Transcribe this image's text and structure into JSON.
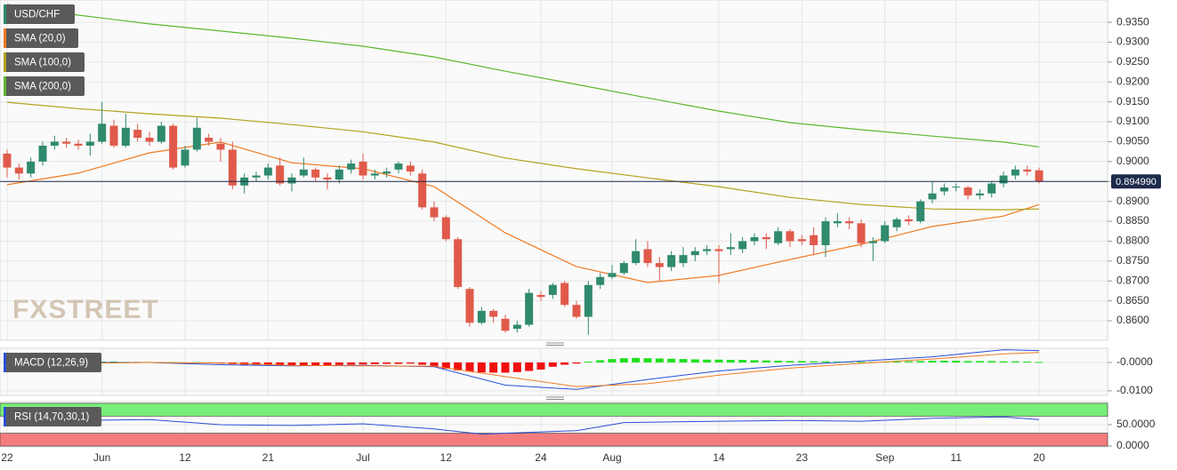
{
  "chart_data": {
    "type": "candlestick",
    "title": "USD/CHF",
    "watermark": "FXSTREET",
    "categories": [
      "22",
      null,
      null,
      null,
      null,
      null,
      null,
      null,
      "Jun",
      null,
      null,
      null,
      null,
      null,
      null,
      "12",
      null,
      null,
      null,
      null,
      null,
      null,
      "21",
      null,
      null,
      null,
      null,
      null,
      null,
      null,
      "Jul",
      null,
      null,
      null,
      null,
      null,
      null,
      "12",
      null,
      null,
      null,
      null,
      null,
      null,
      null,
      "24",
      null,
      null,
      null,
      null,
      null,
      "Aug",
      null,
      null,
      null,
      null,
      null,
      null,
      null,
      null,
      "14",
      null,
      null,
      null,
      null,
      null,
      null,
      "23",
      null,
      null,
      null,
      null,
      null,
      null,
      "Sep",
      null,
      null,
      null,
      null,
      null,
      "11",
      null,
      null,
      null,
      null,
      null,
      null,
      "20"
    ],
    "candles": {
      "open": [
        0.902,
        0.8985,
        0.897,
        0.9,
        0.904,
        0.905,
        0.9045,
        0.904,
        0.905,
        0.909,
        0.904,
        0.908,
        0.906,
        0.905,
        0.909,
        0.899,
        0.903,
        0.906,
        0.9045,
        0.903,
        0.894,
        0.896,
        0.8965,
        0.899,
        0.8945,
        0.8965,
        0.898,
        0.896,
        0.8955,
        0.898,
        0.9,
        0.8965,
        0.897,
        0.898,
        0.899,
        0.897,
        0.8885,
        0.886,
        0.8805,
        0.868,
        0.8595,
        0.8625,
        0.8605,
        0.858,
        0.859,
        0.8665,
        0.8665,
        0.8695,
        0.864,
        0.861,
        0.869,
        0.871,
        0.872,
        0.8745,
        0.878,
        0.8745,
        0.8735,
        0.8745,
        0.8765,
        0.8775,
        0.878,
        0.878,
        0.878,
        0.88,
        0.881,
        0.8795,
        0.8825,
        0.8805,
        0.8815,
        0.879,
        0.8845,
        0.885,
        0.8845,
        0.8795,
        0.88,
        0.8835,
        0.8855,
        0.885,
        0.8905,
        0.8925,
        0.8935,
        0.8935,
        0.8915,
        0.892,
        0.8945,
        0.8965,
        0.898,
        0.8978
      ],
      "high": [
        0.903,
        0.8995,
        0.901,
        0.905,
        0.9065,
        0.906,
        0.9055,
        0.907,
        0.915,
        0.9105,
        0.912,
        0.9095,
        0.9075,
        0.91,
        0.9095,
        0.904,
        0.911,
        0.907,
        0.906,
        0.905,
        0.897,
        0.8975,
        0.8995,
        0.901,
        0.897,
        0.901,
        0.8985,
        0.897,
        0.899,
        0.9005,
        0.902,
        0.898,
        0.8985,
        0.9,
        0.9,
        0.898,
        0.89,
        0.8865,
        0.881,
        0.8685,
        0.8635,
        0.863,
        0.8615,
        0.86,
        0.868,
        0.8675,
        0.8695,
        0.87,
        0.865,
        0.87,
        0.872,
        0.874,
        0.875,
        0.8805,
        0.88,
        0.876,
        0.8775,
        0.8785,
        0.8785,
        0.879,
        0.879,
        0.882,
        0.881,
        0.882,
        0.882,
        0.8835,
        0.883,
        0.8815,
        0.8835,
        0.886,
        0.887,
        0.886,
        0.8855,
        0.881,
        0.885,
        0.886,
        0.8865,
        0.8905,
        0.895,
        0.8945,
        0.8945,
        0.894,
        0.893,
        0.895,
        0.8975,
        0.899,
        0.899,
        0.8985
      ],
      "low": [
        0.896,
        0.8955,
        0.896,
        0.899,
        0.903,
        0.9035,
        0.903,
        0.9015,
        0.9045,
        0.9035,
        0.9035,
        0.905,
        0.904,
        0.9045,
        0.898,
        0.8985,
        0.9025,
        0.904,
        0.9,
        0.893,
        0.892,
        0.895,
        0.8955,
        0.894,
        0.8925,
        0.896,
        0.895,
        0.893,
        0.8945,
        0.897,
        0.8955,
        0.8955,
        0.896,
        0.897,
        0.8965,
        0.888,
        0.885,
        0.88,
        0.868,
        0.8585,
        0.859,
        0.8595,
        0.857,
        0.857,
        0.8585,
        0.865,
        0.8655,
        0.8635,
        0.8605,
        0.8565,
        0.868,
        0.8705,
        0.8715,
        0.874,
        0.8735,
        0.87,
        0.8725,
        0.8735,
        0.875,
        0.8765,
        0.8695,
        0.8765,
        0.877,
        0.879,
        0.878,
        0.879,
        0.8785,
        0.879,
        0.8765,
        0.876,
        0.8835,
        0.883,
        0.8785,
        0.875,
        0.8795,
        0.8825,
        0.884,
        0.8845,
        0.8895,
        0.8915,
        0.8925,
        0.8905,
        0.8905,
        0.891,
        0.8935,
        0.8955,
        0.8965,
        0.8945
      ],
      "close": [
        0.8985,
        0.897,
        0.9,
        0.904,
        0.905,
        0.9045,
        0.904,
        0.905,
        0.9095,
        0.904,
        0.9085,
        0.906,
        0.905,
        0.909,
        0.8985,
        0.903,
        0.9085,
        0.905,
        0.903,
        0.894,
        0.896,
        0.8965,
        0.8985,
        0.8945,
        0.896,
        0.898,
        0.896,
        0.8955,
        0.898,
        0.8995,
        0.8965,
        0.897,
        0.8975,
        0.8995,
        0.8975,
        0.8885,
        0.886,
        0.8805,
        0.8685,
        0.8595,
        0.8625,
        0.861,
        0.8575,
        0.859,
        0.867,
        0.866,
        0.869,
        0.864,
        0.861,
        0.869,
        0.871,
        0.872,
        0.8745,
        0.8775,
        0.8745,
        0.8735,
        0.8765,
        0.8765,
        0.8775,
        0.878,
        0.8775,
        0.8785,
        0.88,
        0.881,
        0.8805,
        0.8825,
        0.88,
        0.88,
        0.879,
        0.885,
        0.885,
        0.8845,
        0.8795,
        0.88,
        0.884,
        0.8855,
        0.885,
        0.89,
        0.892,
        0.8935,
        0.8937,
        0.8915,
        0.892,
        0.8945,
        0.8965,
        0.898,
        0.8975,
        0.895
      ]
    },
    "up_color": "#2f8a6e",
    "down_color": "#e05a4b",
    "ylim": [
      0.8551,
      0.9406
    ],
    "yticks": [
      {
        "value": 0.935,
        "label": "0.9350"
      },
      {
        "value": 0.93,
        "label": "0.9300"
      },
      {
        "value": 0.925,
        "label": "0.9250"
      },
      {
        "value": 0.92,
        "label": "0.9200"
      },
      {
        "value": 0.915,
        "label": "0.9150"
      },
      {
        "value": 0.91,
        "label": "0.9100"
      },
      {
        "value": 0.905,
        "label": "0.9050"
      },
      {
        "value": 0.9,
        "label": "0.9000"
      },
      {
        "value": 0.895,
        "label": "0.8950"
      },
      {
        "value": 0.89,
        "label": "0.8900"
      },
      {
        "value": 0.885,
        "label": "0.8850"
      },
      {
        "value": 0.88,
        "label": "0.8800"
      },
      {
        "value": 0.875,
        "label": "0.8750"
      },
      {
        "value": 0.87,
        "label": "0.8700"
      },
      {
        "value": 0.865,
        "label": "0.8650"
      },
      {
        "value": 0.86,
        "label": "0.8600"
      }
    ],
    "grid": true,
    "last_price": {
      "value": 0.89499,
      "label": "0.894990"
    },
    "series": [
      {
        "name": "SMA (20,0)",
        "color": "#f07b22",
        "x": [
          0,
          6,
          12,
          18,
          24,
          30,
          36,
          42,
          48,
          54,
          60,
          66,
          72,
          78,
          84,
          87
        ],
        "values": [
          0.8942,
          0.8971,
          0.9022,
          0.9049,
          0.8997,
          0.8982,
          0.8937,
          0.8821,
          0.8736,
          0.8696,
          0.8714,
          0.8754,
          0.8792,
          0.8837,
          0.8863,
          0.8892
        ]
      },
      {
        "name": "SMA (100,0)",
        "color": "#b3a11c",
        "x": [
          0,
          6,
          12,
          18,
          24,
          30,
          36,
          42,
          48,
          54,
          60,
          66,
          72,
          78,
          84,
          87
        ],
        "values": [
          0.9149,
          0.9133,
          0.912,
          0.9109,
          0.9093,
          0.9075,
          0.9049,
          0.9009,
          0.8982,
          0.8959,
          0.8937,
          0.891,
          0.8892,
          0.8881,
          0.8879,
          0.8881
        ]
      },
      {
        "name": "SMA (200,0)",
        "color": "#5cb82e",
        "x": [
          0,
          6,
          12,
          18,
          24,
          30,
          36,
          42,
          48,
          54,
          60,
          66,
          72,
          78,
          84,
          87
        ],
        "values": [
          0.9395,
          0.9368,
          0.9346,
          0.9328,
          0.931,
          0.929,
          0.9263,
          0.9227,
          0.9194,
          0.916,
          0.9127,
          0.9098,
          0.908,
          0.9064,
          0.9049,
          0.9037
        ]
      }
    ],
    "macd": {
      "name": "MACD (12,26,9)",
      "ylim": [
        -0.0116,
        0.005
      ],
      "yticks": [
        {
          "value": 0,
          "label": "-0.0000"
        },
        {
          "value": -0.01,
          "label": "-0.0100"
        }
      ],
      "lines": [
        {
          "color": "#2b4fd6",
          "x": [
            0,
            6,
            12,
            18,
            24,
            30,
            36,
            42,
            48,
            54,
            60,
            66,
            72,
            78,
            84,
            87
          ],
          "values": [
            -0.0002,
            0.0,
            0.0,
            -0.0008,
            -0.0012,
            -0.001,
            -0.0015,
            -0.008,
            -0.0095,
            -0.006,
            -0.003,
            -0.001,
            0.0005,
            0.002,
            0.0045,
            0.0042
          ]
        },
        {
          "color": "#f07b22",
          "x": [
            0,
            6,
            12,
            18,
            24,
            30,
            36,
            42,
            48,
            54,
            60,
            66,
            72,
            78,
            84,
            87
          ],
          "values": [
            -0.0005,
            -0.0003,
            0.0,
            -0.0002,
            -0.001,
            -0.0012,
            -0.0013,
            -0.005,
            -0.0085,
            -0.0075,
            -0.0045,
            -0.002,
            -0.0003,
            0.0012,
            0.003,
            0.0035
          ]
        }
      ],
      "histogram": {
        "up_color": "#1ee01e",
        "down_color": "#f01010",
        "values": [
          0.0003,
          0.0003,
          0.0004,
          0.0004,
          0.0004,
          0.0003,
          0.0003,
          0.0003,
          0.0003,
          0.0003,
          0.0002,
          0.0002,
          0.0002,
          0.0001,
          0.0001,
          -0.0001,
          0.0001,
          -0.0001,
          -0.0004,
          -0.0006,
          -0.0008,
          -0.0009,
          -0.001,
          -0.001,
          -0.0011,
          -0.0011,
          -0.001,
          -0.001,
          -0.0009,
          -0.0008,
          -0.0007,
          -0.0006,
          -0.0005,
          -0.0005,
          -0.0004,
          -0.0008,
          -0.0015,
          -0.0022,
          -0.0028,
          -0.0032,
          -0.0035,
          -0.0036,
          -0.0036,
          -0.0034,
          -0.003,
          -0.0025,
          -0.0015,
          -0.0008,
          -0.0004,
          0.0003,
          0.0008,
          0.0012,
          0.0015,
          0.0016,
          0.0015,
          0.0014,
          0.0013,
          0.0012,
          0.0011,
          0.001,
          0.001,
          0.0009,
          0.0009,
          0.0008,
          0.0007,
          0.0006,
          0.0005,
          0.0005,
          0.0004,
          0.0004,
          0.0003,
          0.0003,
          0.0002,
          0.0002,
          0.0003,
          0.0003,
          0.0004,
          0.0005,
          0.0006,
          0.0006,
          0.0006,
          0.0005,
          0.0005,
          0.0005,
          0.0004,
          0.0004,
          0.0003,
          0.0002
        ]
      }
    },
    "rsi": {
      "name": "RSI (14,70,30,1)",
      "ylim": [
        -2,
        104
      ],
      "yticks": [
        {
          "value": 50,
          "label": "50.0000"
        },
        {
          "value": 0,
          "label": "0.0000"
        }
      ],
      "upper_band": [
        70,
        100
      ],
      "lower_band": [
        0,
        30
      ],
      "upper_color": "#77ee77",
      "lower_color": "#f47c7c",
      "color": "#2b4fd6",
      "x": [
        0,
        6,
        12,
        18,
        24,
        30,
        36,
        40,
        44,
        48,
        52,
        60,
        66,
        72,
        78,
        84,
        87
      ],
      "values": [
        55,
        60,
        62,
        50,
        48,
        52,
        40,
        28,
        32,
        36,
        55,
        58,
        60,
        58,
        65,
        68,
        62
      ]
    }
  }
}
